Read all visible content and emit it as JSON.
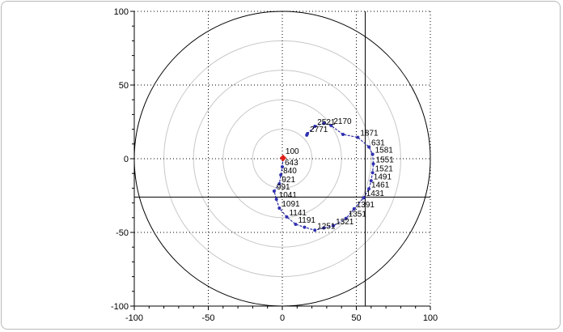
{
  "chart_data": {
    "type": "scatter",
    "title": "",
    "xlabel": "",
    "ylabel": "",
    "xlim": [
      -100,
      100
    ],
    "ylim": [
      -100,
      100
    ],
    "grid": true,
    "rings": [
      20,
      40,
      60,
      80,
      100
    ],
    "xticks": [
      -100,
      -50,
      0,
      50,
      100
    ],
    "yticks": [
      100,
      50,
      0,
      -50,
      -100
    ],
    "crosshair": {
      "x": 56,
      "y": -26
    },
    "colors": {
      "trace": "#1f1f9a",
      "marker": "#3030b0",
      "start": "#e0201a",
      "axis": "#000000",
      "ring": "#c8c8c8"
    },
    "series": [
      {
        "points": [
          {
            "x": 0.5,
            "y": 0.5,
            "label": "100",
            "start": true
          },
          {
            "x": 0.0,
            "y": -5.5,
            "label": "643"
          },
          {
            "x": -1.0,
            "y": -11.0,
            "label": "840"
          },
          {
            "x": -2.0,
            "y": -17.0,
            "label": "921"
          },
          {
            "x": -5.5,
            "y": -22.0,
            "label": "991"
          },
          {
            "x": -4.0,
            "y": -27.5,
            "label": "1041"
          },
          {
            "x": -2.0,
            "y": -33.5,
            "label": "1091"
          },
          {
            "x": 3.0,
            "y": -39.5,
            "label": "1141"
          },
          {
            "x": 9.0,
            "y": -44.5,
            "label": "1191"
          },
          {
            "x": 15.0,
            "y": -46.5,
            "label": ""
          },
          {
            "x": 22.0,
            "y": -48.5,
            "label": "1251"
          },
          {
            "x": 28.0,
            "y": -47.0,
            "label": ""
          },
          {
            "x": 34.5,
            "y": -45.5,
            "label": "1321"
          },
          {
            "x": 43.0,
            "y": -40.5,
            "label": "1351"
          },
          {
            "x": 48.5,
            "y": -34.0,
            "label": "1391"
          },
          {
            "x": 55.0,
            "y": -26.5,
            "label": "1431"
          },
          {
            "x": 58.5,
            "y": -20.5,
            "label": "1461"
          },
          {
            "x": 60.0,
            "y": -15.0,
            "label": "1491"
          },
          {
            "x": 61.0,
            "y": -9.5,
            "label": "1521"
          },
          {
            "x": 61.5,
            "y": -3.5,
            "label": "1551"
          },
          {
            "x": 61.0,
            "y": 3.0,
            "label": "1581"
          },
          {
            "x": 58.5,
            "y": 8.0,
            "label": "631"
          },
          {
            "x": 51.0,
            "y": 14.5,
            "label": "1871"
          },
          {
            "x": 41.0,
            "y": 16.5,
            "label": ""
          },
          {
            "x": 33.0,
            "y": 22.5,
            "label": "2170"
          },
          {
            "x": 28.0,
            "y": 24.0,
            "label": ""
          },
          {
            "x": 22.0,
            "y": 22.0,
            "label": "2521"
          },
          {
            "x": 17.0,
            "y": 17.0,
            "label": "2771"
          },
          {
            "x": 16.5,
            "y": 16.0,
            "label": ""
          }
        ]
      }
    ]
  }
}
